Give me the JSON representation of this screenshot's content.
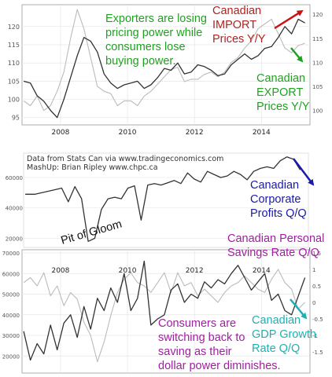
{
  "colors": {
    "import": "#b22222",
    "export": "#22a022",
    "profits": "#1a1aaa",
    "savings": "#a020a0",
    "gdp": "#20b0b0",
    "line": "#333333",
    "grey_line": "#bbbbbb"
  },
  "annotations": {
    "exporters": [
      "Exporters are losing",
      "pricing power while",
      "consumers lose",
      "buying power."
    ],
    "import": [
      "Canadian",
      "IMPORT",
      "Prices Y/Y"
    ],
    "export": [
      "Canadian",
      "EXPORT",
      "Prices Y/Y"
    ],
    "source": [
      "Data from Stats Can via www.tradingeconomics.com",
      "MashUp: Brian Ripley www.chpc.ca"
    ],
    "profits": [
      "Canadian",
      "Corporate",
      "Profits Q/Q"
    ],
    "pit": "Pit of Gloom",
    "savings": [
      "Canadian Personal",
      "Savings Rate Q/Q"
    ],
    "consumers": [
      "Consumers are",
      "switching back to",
      "saving as their",
      "dollar power diminishes."
    ],
    "gdp": [
      "Canadian",
      "GDP Growth",
      "Rate Q/Q"
    ]
  },
  "chart_data": [
    {
      "type": "line",
      "x_ticks": [
        "2008",
        "2010",
        "2012",
        "2014"
      ],
      "ylim_left": [
        93,
        126
      ],
      "yticks_left": [
        "120",
        "115",
        "110",
        "105",
        "100",
        "95"
      ],
      "ylim_right": [
        97,
        122
      ],
      "yticks_right": [
        "120",
        "115",
        "110",
        "105",
        "100"
      ],
      "grid": true,
      "series": [
        {
          "name": "Canadian IMPORT Prices Y/Y",
          "axis": "left",
          "x": [
            2006.9,
            2007.1,
            2007.3,
            2007.5,
            2007.7,
            2007.9,
            2008.1,
            2008.3,
            2008.5,
            2008.7,
            2008.9,
            2009.1,
            2009.3,
            2009.5,
            2009.7,
            2009.9,
            2010.1,
            2010.3,
            2010.5,
            2010.7,
            2010.9,
            2011.1,
            2011.3,
            2011.5,
            2011.7,
            2011.9,
            2012.1,
            2012.3,
            2012.5,
            2012.7,
            2012.9,
            2013.1,
            2013.3,
            2013.5,
            2013.7,
            2013.9,
            2014.1,
            2014.3,
            2014.5,
            2014.7,
            2014.9,
            2015.1,
            2015.3
          ],
          "y": [
            105,
            104.5,
            101,
            99.5,
            97,
            95,
            100,
            106,
            112,
            117,
            116,
            113,
            107,
            104.5,
            103,
            104,
            104.5,
            105,
            103,
            104,
            106,
            108.5,
            108,
            110,
            107,
            107.5,
            109.5,
            109,
            108,
            106.5,
            107,
            109.5,
            111,
            112.5,
            111,
            112,
            114,
            114.5,
            117,
            120,
            118,
            122,
            121
          ]
        },
        {
          "name": "Canadian EXPORT Prices Y/Y",
          "axis": "right",
          "x": [
            2006.9,
            2007.1,
            2007.3,
            2007.5,
            2007.7,
            2007.9,
            2008.1,
            2008.3,
            2008.5,
            2008.7,
            2008.9,
            2009.1,
            2009.3,
            2009.5,
            2009.7,
            2009.9,
            2010.1,
            2010.3,
            2010.5,
            2010.7,
            2010.9,
            2011.1,
            2011.3,
            2011.5,
            2011.7,
            2011.9,
            2012.1,
            2012.3,
            2012.5,
            2012.7,
            2012.9,
            2013.1,
            2013.3,
            2013.5,
            2013.7,
            2013.9,
            2014.1,
            2014.3,
            2014.5,
            2014.7,
            2014.9,
            2015.1,
            2015.3
          ],
          "y": [
            102,
            101,
            103,
            100,
            101,
            104,
            108,
            115,
            121,
            117,
            111,
            105,
            104,
            103.5,
            101,
            102,
            102,
            101,
            103,
            104,
            105.5,
            107,
            108.5,
            109,
            106,
            106.5,
            106.5,
            107.5,
            108,
            107,
            108,
            110,
            111,
            113,
            114.5,
            117,
            118,
            119,
            116,
            113,
            112,
            113.5,
            114
          ]
        }
      ]
    },
    {
      "type": "line",
      "ylim": [
        14000,
        76000
      ],
      "yticks": [
        "60000",
        "40000",
        "20000"
      ],
      "grid": true,
      "series": [
        {
          "name": "Canadian Corporate Profits Q/Q",
          "x": [
            2006.9,
            2007.2,
            2007.5,
            2007.8,
            2008.0,
            2008.2,
            2008.4,
            2008.6,
            2008.8,
            2009.0,
            2009.2,
            2009.4,
            2009.6,
            2009.8,
            2010.0,
            2010.2,
            2010.4,
            2010.6,
            2010.8,
            2011.0,
            2011.2,
            2011.4,
            2011.6,
            2011.8,
            2012.0,
            2012.2,
            2012.4,
            2012.6,
            2012.8,
            2013.0,
            2013.2,
            2013.4,
            2013.6,
            2013.8,
            2014.0,
            2014.2,
            2014.4,
            2014.6,
            2014.8,
            2015.0,
            2015.2
          ],
          "y": [
            49000,
            49000,
            50500,
            52000,
            53000,
            44000,
            54000,
            46000,
            18000,
            20000,
            39000,
            46000,
            47000,
            46000,
            53000,
            54500,
            32000,
            55000,
            56000,
            55000,
            56500,
            58000,
            56000,
            63000,
            59000,
            57000,
            64000,
            62000,
            60000,
            61000,
            64000,
            62000,
            58500,
            64000,
            66000,
            67000,
            66000,
            71000,
            73500,
            72000,
            65000
          ]
        }
      ]
    },
    {
      "type": "line",
      "x_ticks": [
        "2008",
        "2010",
        "2012",
        "2014"
      ],
      "ylim_left": [
        14000,
        70000
      ],
      "yticks_left": [
        "70000",
        "60000",
        "50000",
        "40000",
        "30000",
        "20000"
      ],
      "ylim_right": [
        -2,
        1.5
      ],
      "yticks_right": [
        "1.5",
        "1",
        "0.5",
        "0",
        "-0.5",
        "-1",
        "-1.5"
      ],
      "grid": true,
      "series": [
        {
          "name": "Canadian Personal Savings Rate Q/Q",
          "axis": "left",
          "x": [
            2006.9,
            2007.1,
            2007.3,
            2007.5,
            2007.7,
            2007.9,
            2008.1,
            2008.3,
            2008.5,
            2008.7,
            2008.9,
            2009.1,
            2009.3,
            2009.5,
            2009.7,
            2009.9,
            2010.1,
            2010.3,
            2010.5,
            2010.7,
            2010.9,
            2011.1,
            2011.3,
            2011.5,
            2011.7,
            2011.9,
            2012.1,
            2012.3,
            2012.5,
            2012.7,
            2012.9,
            2013.1,
            2013.3,
            2013.5,
            2013.7,
            2013.9,
            2014.1,
            2014.3,
            2014.5,
            2014.7,
            2014.9,
            2015.1,
            2015.3
          ],
          "y": [
            32000,
            18000,
            26000,
            21000,
            35000,
            23000,
            36000,
            40000,
            29000,
            44000,
            33000,
            48000,
            42000,
            53000,
            46000,
            60000,
            42000,
            48000,
            66000,
            35000,
            38000,
            40000,
            52000,
            55000,
            46000,
            50000,
            48000,
            56000,
            53000,
            57000,
            55000,
            60000,
            64000,
            58000,
            52000,
            56000,
            60000,
            47000,
            50000,
            42000,
            40000,
            49000,
            58000
          ]
        },
        {
          "name": "Canadian GDP Growth Rate Q/Q",
          "axis": "right",
          "x": [
            2006.9,
            2007.1,
            2007.3,
            2007.5,
            2007.7,
            2007.9,
            2008.1,
            2008.3,
            2008.5,
            2008.7,
            2008.9,
            2009.1,
            2009.3,
            2009.5,
            2009.7,
            2009.9,
            2010.1,
            2010.3,
            2010.5,
            2010.7,
            2010.9,
            2011.1,
            2011.3,
            2011.5,
            2011.7,
            2011.9,
            2012.1,
            2012.3,
            2012.5,
            2012.7,
            2012.9,
            2013.1,
            2013.3,
            2013.5,
            2013.7,
            2013.9,
            2014.1,
            2014.3,
            2014.5,
            2014.7,
            2014.9,
            2015.1,
            2015.3
          ],
          "y": [
            0.6,
            0.75,
            0.5,
            0.9,
            0.2,
            0.5,
            -0.1,
            0.3,
            0.1,
            -0.6,
            -1.0,
            -1.8,
            -1.2,
            -0.4,
            0.3,
            0.7,
            0.9,
            0.6,
            0.5,
            0.3,
            0.6,
            0.9,
            0.3,
            0.9,
            0.5,
            0.6,
            0.2,
            0.4,
            0.2,
            0.0,
            0.3,
            0.5,
            0.6,
            0.8,
            0.6,
            0.4,
            0.3,
            0.7,
            1.0,
            0.6,
            0.4,
            -0.2,
            0.0
          ]
        }
      ]
    }
  ]
}
